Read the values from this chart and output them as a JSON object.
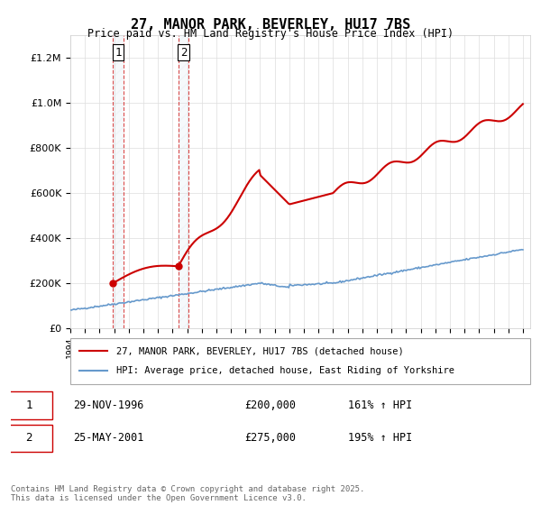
{
  "title": "27, MANOR PARK, BEVERLEY, HU17 7BS",
  "subtitle": "Price paid vs. HM Land Registry's House Price Index (HPI)",
  "legend_line1": "27, MANOR PARK, BEVERLEY, HU17 7BS (detached house)",
  "legend_line2": "HPI: Average price, detached house, East Riding of Yorkshire",
  "transaction1_label": "1",
  "transaction1_date": "29-NOV-1996",
  "transaction1_price": "£200,000",
  "transaction1_hpi": "161% ↑ HPI",
  "transaction2_label": "2",
  "transaction2_date": "25-MAY-2001",
  "transaction2_price": "£275,000",
  "transaction2_hpi": "195% ↑ HPI",
  "footer": "Contains HM Land Registry data © Crown copyright and database right 2025.\nThis data is licensed under the Open Government Licence v3.0.",
  "red_color": "#cc0000",
  "blue_color": "#6699cc",
  "hatch_color": "#c8d8e8",
  "ylim_min": 0,
  "ylim_max": 1300000,
  "background_color": "#ffffff"
}
